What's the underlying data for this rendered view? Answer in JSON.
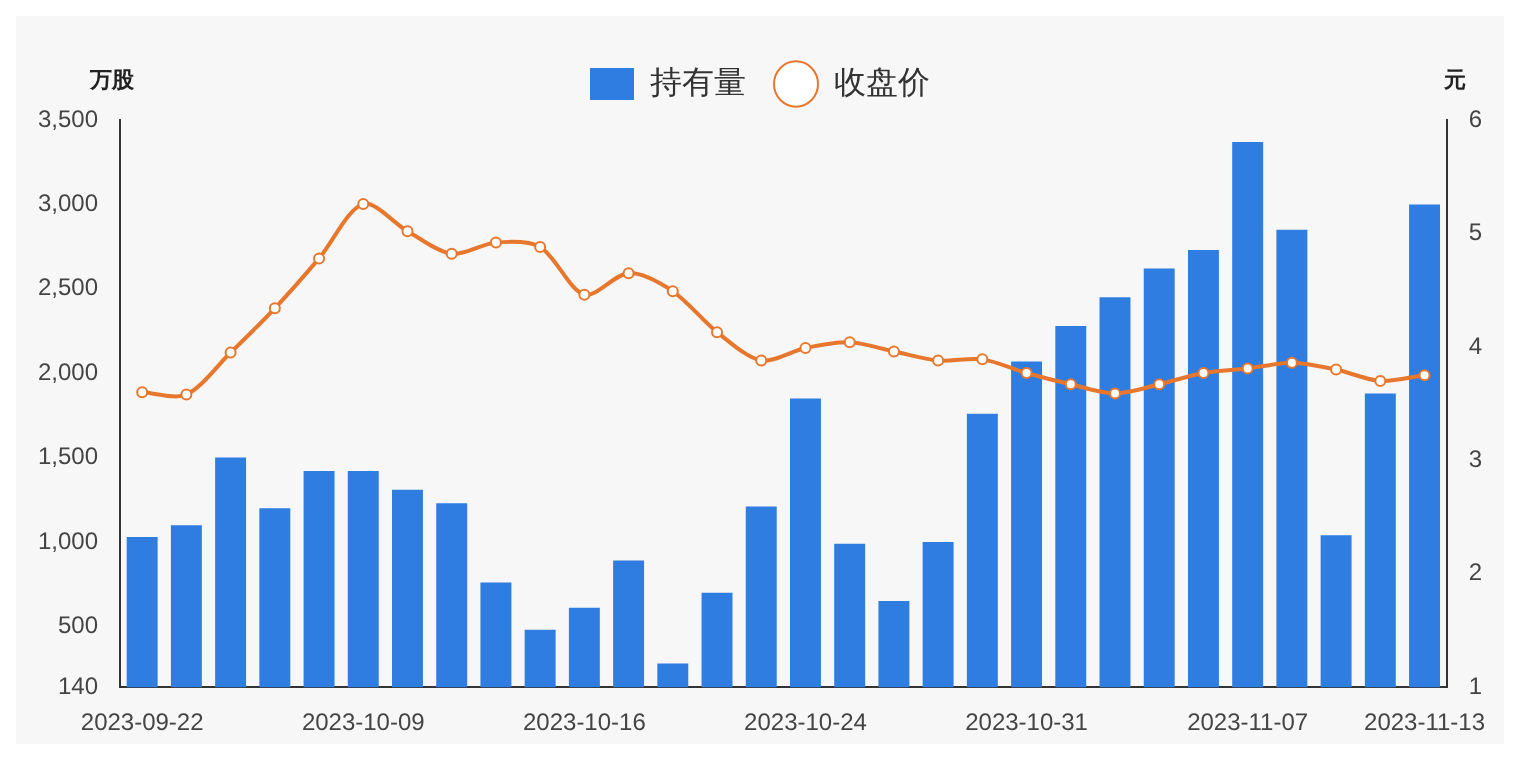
{
  "chart_data": {
    "type": "bar",
    "ylabel": "万股",
    "y2label": "元",
    "legend": "top",
    "categories": [
      "2023-09-22",
      null,
      null,
      null,
      null,
      "2023-10-09",
      null,
      null,
      null,
      null,
      "2023-10-16",
      null,
      null,
      null,
      null,
      "2023-10-24",
      null,
      null,
      null,
      null,
      "2023-10-31",
      null,
      null,
      null,
      null,
      "2023-11-07",
      null,
      null,
      null,
      "2023-11-13"
    ],
    "series": [
      {
        "name": "持有量",
        "color": "#2f7de1",
        "values": [
          1030,
          1100,
          1500,
          1200,
          1420,
          1420,
          1310,
          1230,
          760,
          480,
          610,
          890,
          280,
          700,
          1210,
          1850,
          990,
          650,
          1000,
          1760,
          2070,
          2280,
          2450,
          2620,
          2730,
          3370,
          2850,
          1040,
          1880,
          3000
        ]
      },
      {
        "name": "收盘价",
        "type": "line",
        "axis": "y2",
        "color": "#e8772e",
        "marker": "circle",
        "values": [
          3.6,
          3.58,
          3.95,
          4.34,
          4.78,
          5.26,
          5.02,
          4.82,
          4.92,
          4.88,
          4.46,
          4.65,
          4.49,
          4.13,
          3.88,
          3.99,
          4.04,
          3.96,
          3.88,
          3.89,
          3.77,
          3.67,
          3.59,
          3.67,
          3.77,
          3.81,
          3.86,
          3.8,
          3.7,
          3.75
        ]
      }
    ],
    "ylim": [
      140,
      3500
    ],
    "yticks": [
      140,
      500,
      {
        "value": 1000,
        "label": "1,000"
      },
      {
        "value": 1500,
        "label": "1,500"
      },
      {
        "value": 2000,
        "label": "2,000"
      },
      {
        "value": 2500,
        "label": "2,500"
      },
      {
        "value": 3000,
        "label": "3,000"
      },
      {
        "value": 3500,
        "label": "3,500"
      }
    ],
    "y2lim": [
      1,
      6
    ],
    "y2ticks": [
      1,
      2,
      3,
      4,
      5,
      6
    ],
    "grid": false
  }
}
